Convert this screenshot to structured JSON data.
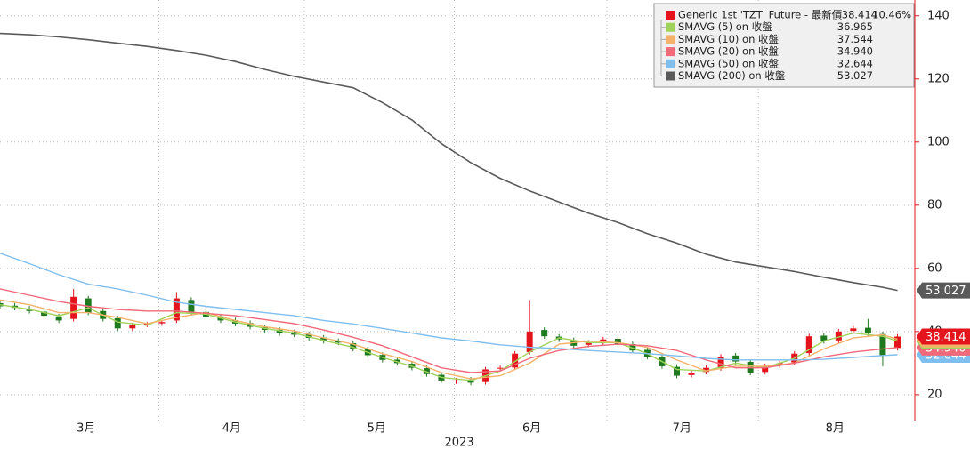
{
  "chart_data": {
    "type": "candlestick",
    "x_axis_label": "2023",
    "xlim": [
      0,
      124
    ],
    "xticks": [
      {
        "value": 11.7,
        "label": "3月"
      },
      {
        "value": 31.5,
        "label": "4月"
      },
      {
        "value": 51.2,
        "label": "5月"
      },
      {
        "value": 72.3,
        "label": "6月"
      },
      {
        "value": 92.7,
        "label": "7月"
      },
      {
        "value": 113.5,
        "label": "8月"
      }
    ],
    "ylim": [
      11.8,
      145
    ],
    "yticks": [
      20,
      40,
      60,
      80,
      100,
      120,
      140
    ],
    "grid": true,
    "candles": {
      "name": "Generic 1st 'TZT' Future - 最新價",
      "legend_value": "38.414",
      "change": "10.46%",
      "color": "#e3141c",
      "up_color": "#e3141c",
      "down_color": "#1f7a1f",
      "x": [
        0,
        2,
        4,
        6,
        8,
        10,
        12,
        14,
        16,
        18,
        20,
        22,
        24,
        26,
        28,
        30,
        32,
        34,
        36,
        38,
        40,
        42,
        44,
        46,
        48,
        50,
        52,
        54,
        56,
        58,
        60,
        62,
        64,
        66,
        68,
        70,
        72,
        74,
        76,
        78,
        80,
        82,
        84,
        86,
        88,
        90,
        92,
        94,
        96,
        98,
        100,
        102,
        104,
        106,
        108,
        110,
        112,
        114,
        116,
        118,
        120,
        122
      ],
      "open": [
        49,
        48.2,
        47.3,
        46.3,
        44.8,
        44,
        50.5,
        46.5,
        44.2,
        41,
        42.2,
        42.6,
        43.5,
        50,
        46.2,
        44.8,
        43.6,
        42.7,
        41.4,
        40.6,
        39.8,
        39.2,
        38.1,
        37,
        36.3,
        34.4,
        32.6,
        31.1,
        29.8,
        28.4,
        26.3,
        24.2,
        24.8,
        24,
        28.4,
        28.6,
        33.5,
        40.5,
        38.4,
        37.3,
        35.8,
        36.6,
        37.7,
        36,
        34.2,
        32,
        28.8,
        26.2,
        27.2,
        28.4,
        32.4,
        30.4,
        27.2,
        29.3,
        30.2,
        33.2,
        38.7,
        37.2,
        40.2,
        41.2,
        39.2,
        34.8
      ],
      "high": [
        49.8,
        49,
        48.1,
        47.1,
        45.6,
        53.5,
        51.3,
        47.3,
        45,
        42.8,
        43,
        43.4,
        52.5,
        50.8,
        47,
        45.6,
        44.4,
        43.5,
        42.2,
        41.4,
        40.6,
        40,
        38.9,
        37.8,
        37.1,
        35.2,
        33.4,
        31.9,
        30.6,
        29.2,
        27.1,
        25.3,
        25.6,
        28.8,
        29.2,
        33.8,
        50,
        41.3,
        39.2,
        38.1,
        37.3,
        38.3,
        38.5,
        36.8,
        35,
        32.8,
        29.6,
        27.8,
        29.3,
        32.8,
        33.2,
        31.2,
        29.8,
        30.8,
        33.8,
        39.3,
        39.5,
        40.8,
        41.8,
        44,
        40,
        39.2
      ],
      "low": [
        47.2,
        46.7,
        45.7,
        44.2,
        42.7,
        43.2,
        45.2,
        43.2,
        40.2,
        40.2,
        41.4,
        41.8,
        42.7,
        45.2,
        43.7,
        42.7,
        41.7,
        40.7,
        39.7,
        38.7,
        38.2,
        37.2,
        36.2,
        35.7,
        33.7,
        31.7,
        30.2,
        29.2,
        27.7,
        25.7,
        23.7,
        23.4,
        23,
        23.2,
        27.6,
        27.8,
        32.7,
        37.7,
        36.7,
        34.7,
        35,
        35.8,
        35.2,
        33.2,
        31.2,
        28.2,
        25.2,
        25.4,
        26.4,
        27.6,
        29.6,
        26.2,
        26.4,
        28.5,
        29.4,
        32.4,
        36.2,
        36.4,
        39.4,
        38.7,
        29,
        34
      ],
      "close": [
        48,
        47.5,
        46.5,
        45,
        43.5,
        51,
        46,
        44,
        41,
        42,
        42.5,
        43,
        50.5,
        46,
        44.5,
        43.5,
        42.5,
        41.5,
        40.5,
        39.5,
        39,
        38,
        37,
        36.5,
        34.5,
        32.5,
        31,
        30,
        28.5,
        26.5,
        24.5,
        24.5,
        23.8,
        28,
        28.5,
        33,
        40,
        38.5,
        37.5,
        35.5,
        36.5,
        37.5,
        36,
        34,
        32,
        29,
        26,
        27,
        28.5,
        32,
        30.5,
        27,
        29,
        30,
        33,
        38.5,
        37,
        40,
        41,
        39.5,
        32.5,
        38.414
      ]
    },
    "ma_x": [
      0,
      4,
      8,
      12,
      16,
      20,
      24,
      28,
      32,
      36,
      40,
      44,
      48,
      52,
      56,
      60,
      64,
      68,
      72,
      76,
      80,
      84,
      88,
      92,
      96,
      100,
      104,
      108,
      112,
      116,
      120,
      122
    ],
    "series": [
      {
        "name": "SMAVG (5)  on 收盤",
        "color": "#9fd35a",
        "legend_value": "36.965",
        "values": [
          48.5,
          47,
          45,
          47.5,
          43,
          42,
          46,
          45.5,
          43,
          41,
          39.5,
          37.2,
          35,
          31.8,
          29,
          25.5,
          24.5,
          27.5,
          33.5,
          38,
          36.5,
          36.5,
          33,
          28,
          27.5,
          30,
          28.5,
          31.5,
          37,
          39.5,
          38.5,
          36.965
        ]
      },
      {
        "name": "SMAVG (10)  on 收盤",
        "color": "#f5b26b",
        "legend_value": "37.544",
        "values": [
          50,
          48.5,
          46,
          46,
          44.5,
          42.5,
          44.5,
          46,
          43.5,
          41.5,
          40.2,
          38,
          36,
          33,
          30.5,
          27,
          25,
          26,
          30,
          36,
          37,
          36.5,
          35,
          31,
          27.5,
          29,
          29,
          30,
          34.5,
          38,
          39,
          37.544
        ]
      },
      {
        "name": "SMAVG (20)  on 收盤",
        "color": "#f2697a",
        "legend_value": "34.940",
        "values": [
          53.5,
          51.5,
          49.5,
          48,
          47,
          46.5,
          46.5,
          45.8,
          45,
          43.8,
          42.5,
          40.5,
          38.2,
          35.5,
          32,
          28.5,
          27,
          27.5,
          31.5,
          34,
          35.3,
          36,
          35.5,
          34,
          31,
          28.5,
          28.5,
          30,
          32,
          33.5,
          34.5,
          34.94
        ]
      },
      {
        "name": "SMAVG (50)  on 收盤",
        "color": "#7fbff0",
        "legend_value": "32.644",
        "values": [
          64.8,
          61.5,
          58,
          55,
          53.5,
          51.5,
          49.3,
          48,
          47,
          46,
          45,
          43.5,
          42.4,
          41,
          39.5,
          38,
          37,
          35.8,
          35,
          34.6,
          34,
          33.5,
          33,
          32.3,
          31.5,
          31,
          31,
          31,
          31.2,
          31.8,
          32.4,
          32.644
        ]
      },
      {
        "name": "SMAVG (200)  on 收盤",
        "color": "#5a5a5a",
        "legend_value": "53.027",
        "values": [
          134.4,
          134,
          133.3,
          132.4,
          131.3,
          130.3,
          129,
          127.5,
          125.5,
          123,
          120.8,
          119,
          117.2,
          112.5,
          107,
          99.5,
          93.5,
          88.5,
          84.5,
          81,
          77.5,
          74.5,
          71,
          68,
          64.5,
          62,
          60.5,
          59,
          57.2,
          55.5,
          54,
          53.027
        ]
      }
    ]
  }
}
